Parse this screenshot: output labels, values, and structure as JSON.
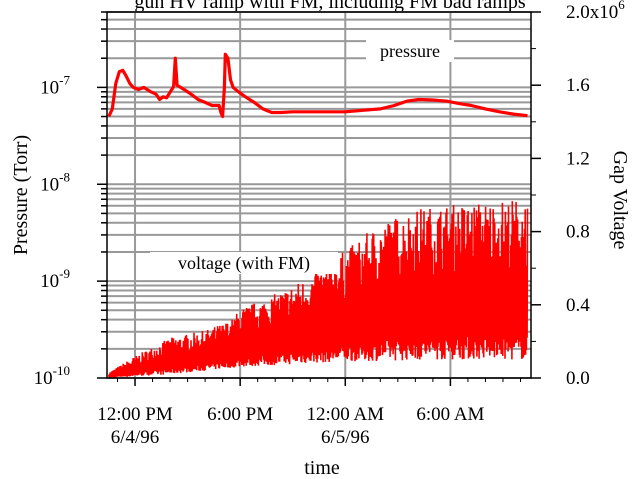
{
  "chart_data": {
    "type": "line",
    "title": "gun HV ramp with FM, including FM bad ramps",
    "xlabel": "time",
    "ylabel_left": "Pressure (Torr)",
    "ylabel_right": "Gap Voltage",
    "y_left_scale": "log",
    "y_left_ticks": [
      {
        "value": 1e-10,
        "base": "10",
        "exp": "-10"
      },
      {
        "value": 1e-09,
        "base": "10",
        "exp": "-9"
      },
      {
        "value": 1e-08,
        "base": "10",
        "exp": "-8"
      },
      {
        "value": 1e-07,
        "base": "10",
        "exp": "-7"
      }
    ],
    "y_left_range": [
      1e-10,
      6e-07
    ],
    "y_right_range": [
      0.0,
      2000000
    ],
    "y_right_ticks": [
      "0.0",
      "0.4",
      "0.8",
      "1.2",
      "1.6",
      "2.0x10"
    ],
    "y_right_tick_values": [
      0,
      400000,
      800000,
      1200000,
      1600000,
      2000000
    ],
    "y_right_exponent": "6",
    "x_range_hours": [
      -1.6,
      22.6
    ],
    "x_ticks": [
      {
        "hours": 0,
        "line1": "12:00 PM",
        "line2": "6/4/96"
      },
      {
        "hours": 6,
        "line1": "6:00 PM",
        "line2": ""
      },
      {
        "hours": 12,
        "line1": "12:00 AM",
        "line2": "6/5/96"
      },
      {
        "hours": 18,
        "line1": "6:00 AM",
        "line2": ""
      }
    ],
    "grid": true,
    "series": [
      {
        "name": "pressure",
        "axis": "left",
        "color": "#ff0000",
        "points": [
          [
            -1.5,
            5e-08
          ],
          [
            -1.3,
            6e-08
          ],
          [
            -1.1,
            1.1e-07
          ],
          [
            -0.9,
            1.45e-07
          ],
          [
            -0.7,
            1.5e-07
          ],
          [
            -0.5,
            1.3e-07
          ],
          [
            -0.3,
            1.1e-07
          ],
          [
            -0.1,
            1e-07
          ],
          [
            0.2,
            9.5e-08
          ],
          [
            0.5,
            1e-07
          ],
          [
            0.9,
            9e-08
          ],
          [
            1.2,
            8.5e-08
          ],
          [
            1.4,
            7.5e-08
          ],
          [
            1.6,
            8e-08
          ],
          [
            1.8,
            7.8e-08
          ],
          [
            2.2,
            1.02e-07
          ],
          [
            2.3,
            2e-07
          ],
          [
            2.4,
            1.05e-07
          ],
          [
            2.8,
            9.5e-08
          ],
          [
            3.2,
            8.5e-08
          ],
          [
            3.6,
            7.5e-08
          ],
          [
            4.0,
            7e-08
          ],
          [
            4.4,
            6.5e-08
          ],
          [
            4.8,
            6.5e-08
          ],
          [
            4.9,
            5.5e-08
          ],
          [
            5.0,
            5e-08
          ],
          [
            5.1,
            1e-07
          ],
          [
            5.15,
            2.2e-07
          ],
          [
            5.3,
            2e-07
          ],
          [
            5.45,
            1.2e-07
          ],
          [
            5.6,
            1e-07
          ],
          [
            5.9,
            9e-08
          ],
          [
            6.3,
            8e-08
          ],
          [
            6.8,
            7e-08
          ],
          [
            7.3,
            6e-08
          ],
          [
            7.8,
            5.5e-08
          ],
          [
            8.3,
            5.5e-08
          ],
          [
            9.0,
            5.6e-08
          ],
          [
            10.0,
            5.6e-08
          ],
          [
            11.0,
            5.6e-08
          ],
          [
            12.0,
            5.6e-08
          ],
          [
            13.0,
            5.8e-08
          ],
          [
            14.0,
            6e-08
          ],
          [
            14.8,
            6.5e-08
          ],
          [
            15.5,
            7.2e-08
          ],
          [
            16.2,
            7.5e-08
          ],
          [
            17.0,
            7.4e-08
          ],
          [
            17.8,
            7.2e-08
          ],
          [
            18.5,
            6.8e-08
          ],
          [
            19.2,
            6.5e-08
          ],
          [
            20.0,
            6e-08
          ],
          [
            20.8,
            5.6e-08
          ],
          [
            21.6,
            5.3e-08
          ],
          [
            22.4,
            5.1e-08
          ]
        ]
      },
      {
        "name": "voltage (with FM)",
        "axis": "right",
        "color": "#ff0000",
        "envelope": [
          [
            -1.5,
            30000
          ],
          [
            0.0,
            120000
          ],
          [
            2.0,
            220000
          ],
          [
            4.0,
            260000
          ],
          [
            5.5,
            320000
          ],
          [
            6.0,
            380000
          ],
          [
            8.0,
            460000
          ],
          [
            10.0,
            560000
          ],
          [
            12.0,
            700000
          ],
          [
            14.0,
            850000
          ],
          [
            16.0,
            930000
          ],
          [
            18.0,
            950000
          ],
          [
            20.0,
            970000
          ],
          [
            22.4,
            990000
          ]
        ],
        "baseline": [
          [
            -1.5,
            0
          ],
          [
            2.0,
            20000
          ],
          [
            6.0,
            60000
          ],
          [
            12.0,
            90000
          ],
          [
            18.0,
            100000
          ],
          [
            22.4,
            100000
          ]
        ]
      }
    ],
    "annotations": [
      {
        "text": "pressure",
        "series": "pressure"
      },
      {
        "text": "voltage (with FM)",
        "series": "voltage (with FM)"
      }
    ]
  }
}
